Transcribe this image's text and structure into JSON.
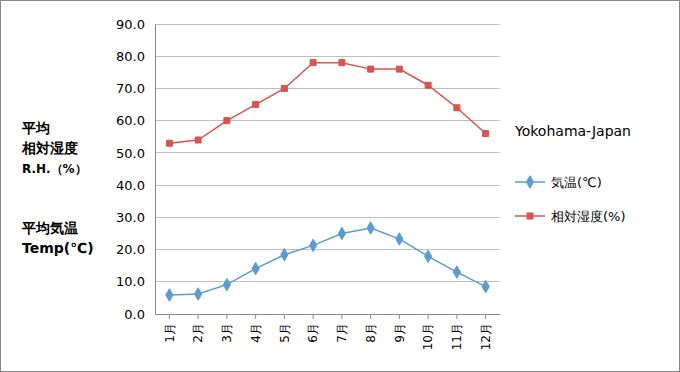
{
  "chart_data": {
    "type": "line",
    "title": "Yokohama-Japan",
    "annotations": [
      [
        "平均",
        "相対湿度",
        "R.H.（%）"
      ],
      [
        "平均気温",
        "Temp(℃)"
      ]
    ],
    "categories": [
      "1月",
      "2月",
      "3月",
      "4月",
      "5月",
      "6月",
      "7月",
      "8月",
      "9月",
      "10月",
      "11月",
      "12月"
    ],
    "series": [
      {
        "name": "気温(℃)",
        "color": "#5b9bd5",
        "marker": "diamond",
        "values": [
          5.9,
          6.2,
          9.1,
          14.1,
          18.4,
          21.3,
          25.0,
          26.7,
          23.3,
          17.9,
          13.0,
          8.5
        ]
      },
      {
        "name": "相対湿度(%)",
        "color": "#d9534f",
        "marker": "square",
        "values": [
          53,
          54,
          60,
          65,
          70,
          78,
          78,
          76,
          76,
          71,
          64,
          56
        ]
      }
    ],
    "ylim": [
      0,
      90
    ],
    "yticks": [
      {
        "value": 0,
        "label": "0.0"
      },
      {
        "value": 10,
        "label": "10.0"
      },
      {
        "value": 20,
        "label": "20.0"
      },
      {
        "value": 30,
        "label": "30.0"
      },
      {
        "value": 40,
        "label": "40.0"
      },
      {
        "value": 50,
        "label": "50.0"
      },
      {
        "value": 60,
        "label": "60.0"
      },
      {
        "value": 70,
        "label": "70.0"
      },
      {
        "value": 80,
        "label": "80.0"
      },
      {
        "value": 90,
        "label": "90.0"
      }
    ],
    "grid": true,
    "legend": "right"
  }
}
